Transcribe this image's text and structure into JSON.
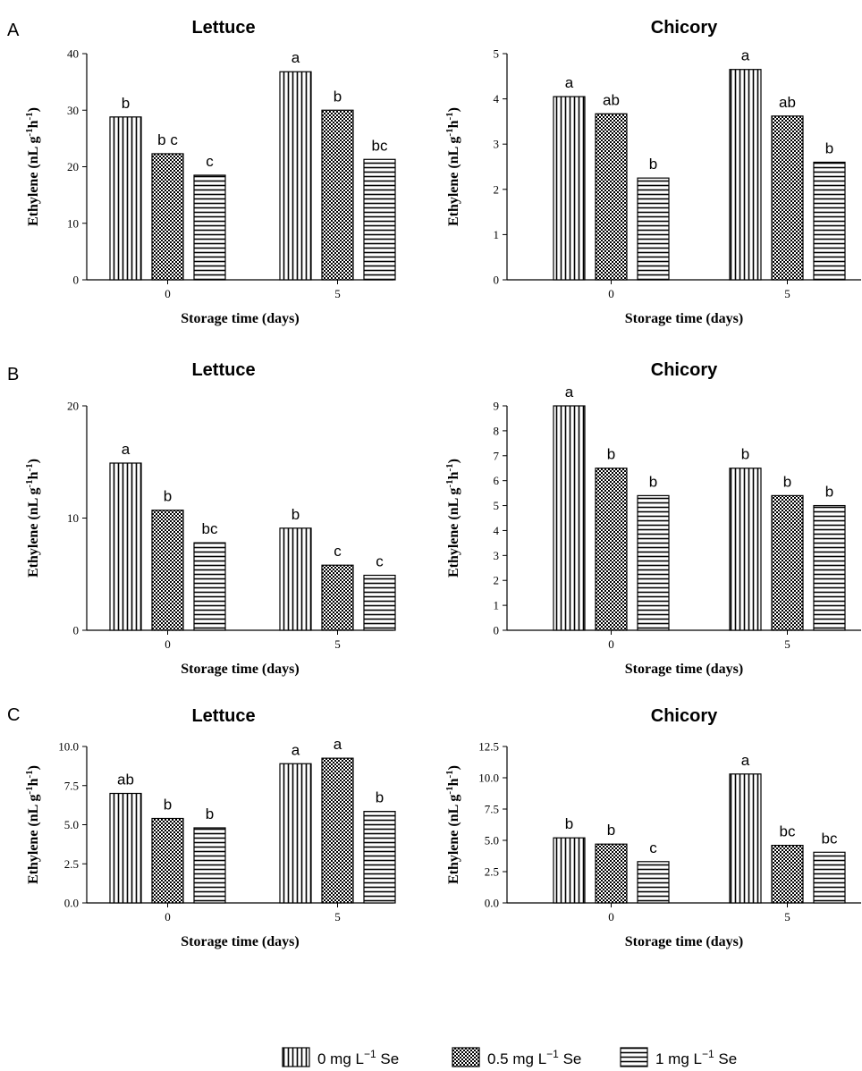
{
  "legend": [
    {
      "label": "0 mg L",
      "sup": "−1",
      "suffix": " Se",
      "pattern": "vert"
    },
    {
      "label": "0.5 mg L",
      "sup": "−1",
      "suffix": " Se",
      "pattern": "check"
    },
    {
      "label": "1 mg L",
      "sup": "−1",
      "suffix": " Se",
      "pattern": "horiz"
    }
  ],
  "chart_data": [
    {
      "type": "bar",
      "panel_label": "A",
      "title": "Lettuce",
      "xlabel": "Storage time (days)",
      "ylabel_main": "Ethylene (nL g",
      "ylabel_sup1": "-1",
      "ylabel_mid": "h",
      "ylabel_sup2": "-1",
      "ylabel_end": ")",
      "categories": [
        "0",
        "5"
      ],
      "ylim": [
        0,
        40
      ],
      "yticks": [
        "0",
        "10",
        "20",
        "30",
        "40"
      ],
      "series": [
        {
          "name": "0 mg L-1 Se",
          "values": [
            28.8,
            36.8
          ],
          "labels": [
            "b",
            "a"
          ]
        },
        {
          "name": "0.5 mg L-1 Se",
          "values": [
            22.3,
            30.0
          ],
          "labels": [
            "b c",
            "b"
          ]
        },
        {
          "name": "1 mg L-1 Se",
          "values": [
            18.5,
            21.3
          ],
          "labels": [
            "c",
            "bc"
          ]
        }
      ]
    },
    {
      "type": "bar",
      "panel_label": "",
      "title": "Chicory",
      "xlabel": "Storage time (days)",
      "ylabel_main": "Ethylene (nL g",
      "ylabel_sup1": "-1",
      "ylabel_mid": "h",
      "ylabel_sup2": "-1",
      "ylabel_end": ")",
      "categories": [
        "0",
        "5"
      ],
      "ylim": [
        0,
        5
      ],
      "yticks": [
        "0",
        "1",
        "2",
        "3",
        "4",
        "5"
      ],
      "series": [
        {
          "name": "0 mg L-1 Se",
          "values": [
            4.05,
            4.65
          ],
          "labels": [
            "a",
            "a"
          ]
        },
        {
          "name": "0.5 mg L-1 Se",
          "values": [
            3.67,
            3.62
          ],
          "labels": [
            "ab",
            "ab"
          ]
        },
        {
          "name": "1 mg L-1 Se",
          "values": [
            2.25,
            2.6
          ],
          "labels": [
            "b",
            "b"
          ]
        }
      ]
    },
    {
      "type": "bar",
      "panel_label": "B",
      "title": "Lettuce",
      "xlabel": "Storage time (days)",
      "ylabel_main": "Ethylene (nL g",
      "ylabel_sup1": "-1",
      "ylabel_mid": "h",
      "ylabel_sup2": "-1",
      "ylabel_end": ")",
      "categories": [
        "0",
        "5"
      ],
      "ylim": [
        0,
        20
      ],
      "yticks": [
        "0",
        "10",
        "20"
      ],
      "series": [
        {
          "name": "0 mg L-1 Se",
          "values": [
            14.9,
            9.1
          ],
          "labels": [
            "a",
            "b"
          ]
        },
        {
          "name": "0.5 mg L-1 Se",
          "values": [
            10.7,
            5.8
          ],
          "labels": [
            "b",
            "c"
          ]
        },
        {
          "name": "1 mg L-1 Se",
          "values": [
            7.8,
            4.9
          ],
          "labels": [
            "bc",
            "c"
          ]
        }
      ]
    },
    {
      "type": "bar",
      "panel_label": "",
      "title": "Chicory",
      "xlabel": "Storage time (days)",
      "ylabel_main": "Ethylene (nL g",
      "ylabel_sup1": "-1",
      "ylabel_mid": "h",
      "ylabel_sup2": "-1",
      "ylabel_end": ")",
      "categories": [
        "0",
        "5"
      ],
      "ylim": [
        0,
        9
      ],
      "yticks": [
        "0",
        "1",
        "2",
        "3",
        "4",
        "5",
        "6",
        "7",
        "8",
        "9"
      ],
      "series": [
        {
          "name": "0 mg L-1 Se",
          "values": [
            9.0,
            6.5
          ],
          "labels": [
            "a",
            "b"
          ]
        },
        {
          "name": "0.5 mg L-1 Se",
          "values": [
            6.5,
            5.4
          ],
          "labels": [
            "b",
            "b"
          ]
        },
        {
          "name": "1 mg L-1 Se",
          "values": [
            5.4,
            5.0
          ],
          "labels": [
            "b",
            "b"
          ]
        }
      ]
    },
    {
      "type": "bar",
      "panel_label": "C",
      "title": "Lettuce",
      "xlabel": "Storage time (days)",
      "ylabel_main": "Ethylene (nL g",
      "ylabel_sup1": "-1",
      "ylabel_mid": "h",
      "ylabel_sup2": "-1",
      "ylabel_end": ")",
      "categories": [
        "0",
        "5"
      ],
      "ylim": [
        0,
        10
      ],
      "yticks": [
        "0.0",
        "2.5",
        "5.0",
        "7.5",
        "10.0"
      ],
      "series": [
        {
          "name": "0 mg L-1 Se",
          "values": [
            7.0,
            8.9
          ],
          "labels": [
            "ab",
            "a"
          ]
        },
        {
          "name": "0.5 mg L-1 Se",
          "values": [
            5.4,
            9.25
          ],
          "labels": [
            "b",
            "a"
          ]
        },
        {
          "name": "1 mg L-1 Se",
          "values": [
            4.8,
            5.85
          ],
          "labels": [
            "b",
            "b"
          ]
        }
      ]
    },
    {
      "type": "bar",
      "panel_label": "",
      "title": "Chicory",
      "xlabel": "Storage time (days)",
      "ylabel_main": "Ethylene (nL g",
      "ylabel_sup1": "-1",
      "ylabel_mid": "h",
      "ylabel_sup2": "-1",
      "ylabel_end": ")",
      "categories": [
        "0",
        "5"
      ],
      "ylim": [
        0,
        12.5
      ],
      "yticks": [
        "0.0",
        "2.5",
        "5.0",
        "7.5",
        "10.0",
        "12.5"
      ],
      "series": [
        {
          "name": "0 mg L-1 Se",
          "values": [
            5.2,
            10.3
          ],
          "labels": [
            "b",
            "a"
          ]
        },
        {
          "name": "0.5 mg L-1 Se",
          "values": [
            4.7,
            4.6
          ],
          "labels": [
            "b",
            "bc"
          ]
        },
        {
          "name": "1 mg L-1 Se",
          "values": [
            3.3,
            4.05
          ],
          "labels": [
            "c",
            "bc"
          ]
        }
      ]
    }
  ]
}
